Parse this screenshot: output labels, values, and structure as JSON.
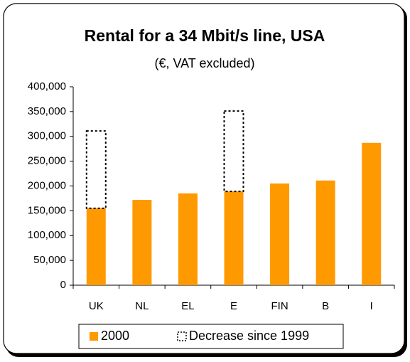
{
  "chart_data": {
    "type": "bar",
    "stacked": true,
    "title": "Rental for a 34 Mbit/s line, USA",
    "subtitle": "(€, VAT excluded)",
    "categories": [
      "UK",
      "NL",
      "EL",
      "E",
      "FIN",
      "B",
      "I"
    ],
    "series": [
      {
        "name": "2000",
        "color": "#ff9900",
        "style": "solid",
        "values": [
          155000,
          172000,
          185000,
          189000,
          205000,
          211000,
          287000
        ]
      },
      {
        "name": "Decrease since 1999",
        "color": "#000000",
        "style": "dashed",
        "values": [
          156000,
          null,
          null,
          162000,
          null,
          null,
          null
        ]
      }
    ],
    "ylim": [
      0,
      400000
    ],
    "yticks": [
      0,
      {
        "value": 50000,
        "label": "50,000"
      },
      {
        "value": 100000,
        "label": "100,000"
      },
      {
        "value": 150000,
        "label": "150,000"
      },
      {
        "value": 200000,
        "label": "200,000"
      },
      {
        "value": 250000,
        "label": "250,000"
      },
      {
        "value": 300000,
        "label": "300,000"
      },
      {
        "value": 350000,
        "label": "350,000"
      },
      {
        "value": 400000,
        "label": "400,000"
      }
    ],
    "grid": false,
    "legend": "bottom"
  }
}
